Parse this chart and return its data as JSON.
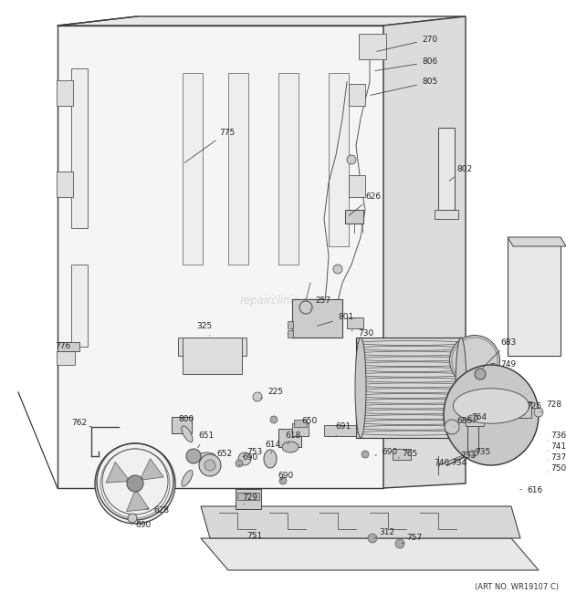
{
  "art_no": "(ART NO. WR19107 C)",
  "watermark": "repairclinic.com",
  "bg_color": "#ffffff",
  "lc": "#3a3a3a",
  "fig_width": 6.2,
  "fig_height": 6.61,
  "dpi": 100
}
